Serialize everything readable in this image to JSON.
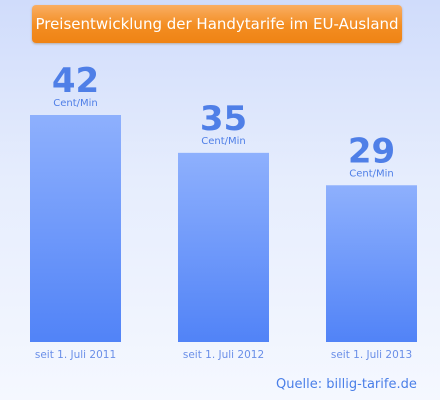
{
  "chart_data": {
    "type": "bar",
    "title": "Preisentwicklung der Handytarife im EU-Ausland",
    "categories": [
      "seit 1. Juli 2011",
      "seit 1. Juli 2012",
      "seit 1. Juli 2013"
    ],
    "values": [
      42,
      35,
      29
    ],
    "value_labels": [
      "42",
      "35",
      "29"
    ],
    "unit": "Cent/Min",
    "xlabel": "",
    "ylabel": "",
    "ylim": [
      0,
      52
    ],
    "grid": false,
    "legend": "none",
    "source": "Quelle: billig-tarife.de"
  },
  "colors": {
    "bar_top": "#8eb0fd",
    "bar_bottom": "#5183f7",
    "value_text": "#4f7fe7",
    "category_text": "#6a8fe8",
    "title_bg": "#f38d21",
    "title_text": "#ffffff"
  }
}
